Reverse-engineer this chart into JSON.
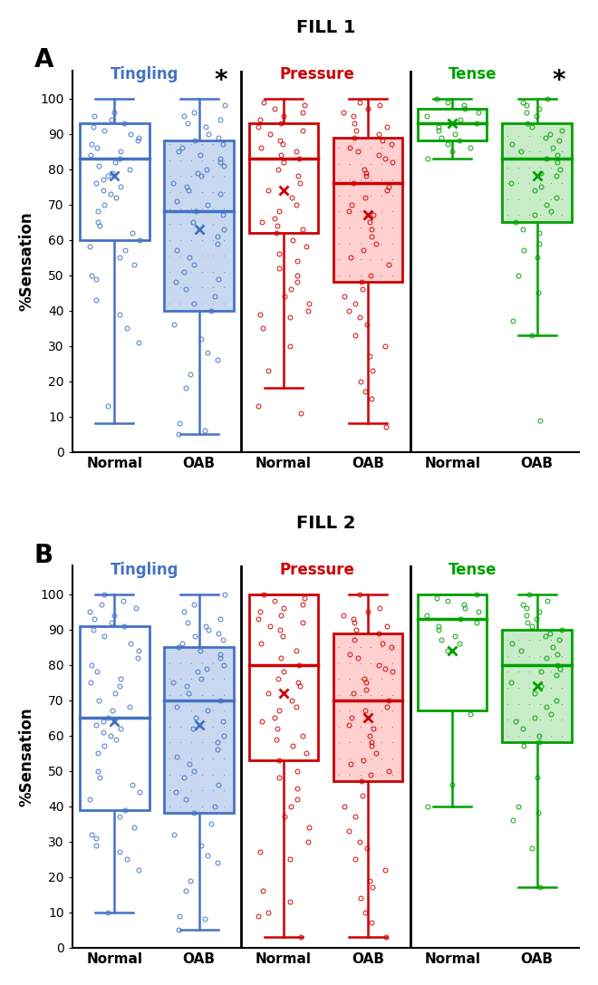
{
  "fill1": {
    "title": "FILL 1",
    "label": "A",
    "groups": [
      {
        "name": "Tingling",
        "color": "#4472C4",
        "normal": {
          "whislo": 8,
          "q1": 60,
          "med": 83,
          "q3": 93,
          "whishi": 100,
          "mean": 78,
          "fliers": [
            13,
            31,
            35,
            39,
            43,
            49,
            50,
            53,
            55,
            57,
            58,
            60,
            62,
            64,
            65,
            68,
            70,
            72,
            73,
            74,
            75,
            76,
            77,
            78,
            79,
            80,
            81,
            82,
            83,
            84,
            85,
            86,
            87,
            88,
            89,
            90,
            91,
            92,
            93,
            94,
            95,
            96
          ]
        },
        "oab": {
          "whislo": 5,
          "q1": 40,
          "med": 68,
          "q3": 88,
          "whishi": 100,
          "mean": 63,
          "fliers": [
            5,
            6,
            8,
            18,
            22,
            26,
            28,
            32,
            36,
            40,
            42,
            44,
            46,
            48,
            49,
            51,
            53,
            55,
            57,
            59,
            61,
            63,
            65,
            67,
            68,
            70,
            71,
            73,
            74,
            75,
            76,
            78,
            79,
            80,
            81,
            82,
            83,
            84,
            85,
            86,
            87,
            88,
            89,
            90,
            92,
            93,
            94,
            95,
            96,
            98
          ]
        },
        "significant": true,
        "sig_on": "oab"
      },
      {
        "name": "Pressure",
        "color": "#CC0000",
        "normal": {
          "whislo": 18,
          "q1": 62,
          "med": 83,
          "q3": 93,
          "whishi": 100,
          "mean": 74,
          "fliers": [
            11,
            13,
            23,
            30,
            35,
            38,
            39,
            40,
            42,
            44,
            46,
            48,
            50,
            52,
            54,
            56,
            58,
            60,
            62,
            63,
            64,
            65,
            66,
            68,
            70,
            72,
            74,
            76,
            78,
            80,
            82,
            83,
            84,
            85,
            86,
            87,
            88,
            90,
            91,
            92,
            93,
            94,
            95,
            96,
            97,
            98,
            99
          ]
        },
        "oab": {
          "whislo": 8,
          "q1": 48,
          "med": 76,
          "q3": 89,
          "whishi": 100,
          "mean": 67,
          "fliers": [
            7,
            15,
            17,
            20,
            23,
            27,
            30,
            33,
            36,
            38,
            40,
            42,
            44,
            46,
            48,
            50,
            53,
            55,
            57,
            59,
            61,
            63,
            65,
            67,
            68,
            70,
            72,
            74,
            75,
            76,
            78,
            79,
            80,
            82,
            83,
            84,
            85,
            86,
            87,
            88,
            89,
            90,
            91,
            92,
            93,
            95,
            96,
            97,
            98,
            99
          ]
        },
        "significant": false,
        "sig_on": null
      },
      {
        "name": "Tense",
        "color": "#00A000",
        "normal": {
          "whislo": 83,
          "q1": 88,
          "med": 93,
          "q3": 97,
          "whishi": 100,
          "mean": 93,
          "fliers": [
            83,
            85,
            86,
            87,
            88,
            89,
            90,
            91,
            92,
            93,
            94,
            95,
            96,
            97,
            98,
            99,
            100
          ]
        },
        "oab": {
          "whislo": 33,
          "q1": 65,
          "med": 83,
          "q3": 93,
          "whishi": 100,
          "mean": 78,
          "fliers": [
            9,
            33,
            37,
            45,
            50,
            55,
            57,
            59,
            62,
            63,
            65,
            67,
            68,
            70,
            72,
            74,
            75,
            76,
            78,
            79,
            80,
            82,
            83,
            84,
            85,
            86,
            87,
            88,
            89,
            90,
            91,
            92,
            93,
            95,
            96,
            97,
            98,
            99,
            100
          ]
        },
        "significant": true,
        "sig_on": "oab"
      }
    ]
  },
  "fill2": {
    "title": "FILL 2",
    "label": "B",
    "groups": [
      {
        "name": "Tingling",
        "color": "#4472C4",
        "normal": {
          "whislo": 10,
          "q1": 39,
          "med": 65,
          "q3": 91,
          "whishi": 100,
          "mean": 64,
          "fliers": [
            10,
            22,
            25,
            27,
            29,
            31,
            32,
            34,
            37,
            39,
            42,
            44,
            46,
            48,
            50,
            55,
            57,
            59,
            60,
            61,
            62,
            63,
            64,
            65,
            67,
            68,
            70,
            72,
            74,
            75,
            76,
            78,
            80,
            82,
            84,
            86,
            88,
            90,
            91,
            92,
            93,
            94,
            95,
            96,
            97,
            98,
            100
          ]
        },
        "oab": {
          "whislo": 5,
          "q1": 38,
          "med": 70,
          "q3": 85,
          "whishi": 100,
          "mean": 63,
          "fliers": [
            5,
            8,
            9,
            16,
            19,
            24,
            26,
            29,
            32,
            35,
            38,
            40,
            42,
            44,
            46,
            48,
            50,
            52,
            54,
            56,
            58,
            60,
            62,
            64,
            65,
            67,
            68,
            70,
            72,
            74,
            75,
            76,
            78,
            79,
            80,
            82,
            83,
            84,
            85,
            86,
            87,
            88,
            89,
            90,
            91,
            92,
            93,
            95,
            97,
            100
          ]
        },
        "significant": false,
        "sig_on": null
      },
      {
        "name": "Pressure",
        "color": "#CC0000",
        "normal": {
          "whislo": 3,
          "q1": 53,
          "med": 80,
          "q3": 100,
          "whishi": 100,
          "mean": 72,
          "fliers": [
            3,
            9,
            10,
            13,
            16,
            25,
            27,
            30,
            34,
            37,
            40,
            42,
            45,
            48,
            50,
            53,
            55,
            57,
            59,
            60,
            62,
            64,
            65,
            67,
            68,
            70,
            72,
            74,
            75,
            76,
            78,
            80,
            82,
            84,
            86,
            88,
            90,
            91,
            92,
            93,
            94,
            95,
            96,
            97,
            98,
            99,
            100
          ]
        },
        "oab": {
          "whislo": 3,
          "q1": 47,
          "med": 70,
          "q3": 89,
          "whishi": 100,
          "mean": 65,
          "fliers": [
            3,
            7,
            10,
            14,
            17,
            19,
            22,
            25,
            28,
            30,
            33,
            37,
            40,
            43,
            47,
            49,
            50,
            52,
            53,
            55,
            57,
            58,
            60,
            62,
            63,
            65,
            67,
            68,
            70,
            72,
            73,
            75,
            76,
            78,
            79,
            80,
            82,
            83,
            85,
            86,
            87,
            89,
            90,
            91,
            92,
            93,
            94,
            95,
            96,
            100
          ]
        },
        "significant": false,
        "sig_on": null
      },
      {
        "name": "Tense",
        "color": "#00A000",
        "normal": {
          "whislo": 40,
          "q1": 67,
          "med": 93,
          "q3": 100,
          "whishi": 100,
          "mean": 84,
          "fliers": [
            40,
            46,
            66,
            84,
            86,
            87,
            88,
            90,
            91,
            92,
            93,
            94,
            95,
            96,
            97,
            98,
            99,
            100
          ]
        },
        "oab": {
          "whislo": 17,
          "q1": 58,
          "med": 80,
          "q3": 90,
          "whishi": 100,
          "mean": 74,
          "fliers": [
            17,
            28,
            36,
            38,
            40,
            48,
            57,
            58,
            60,
            62,
            64,
            65,
            66,
            68,
            70,
            72,
            74,
            75,
            77,
            78,
            79,
            80,
            82,
            83,
            84,
            85,
            86,
            87,
            88,
            89,
            90,
            91,
            92,
            93,
            94,
            95,
            96,
            97,
            98,
            100
          ]
        },
        "significant": false,
        "sig_on": null
      }
    ]
  }
}
